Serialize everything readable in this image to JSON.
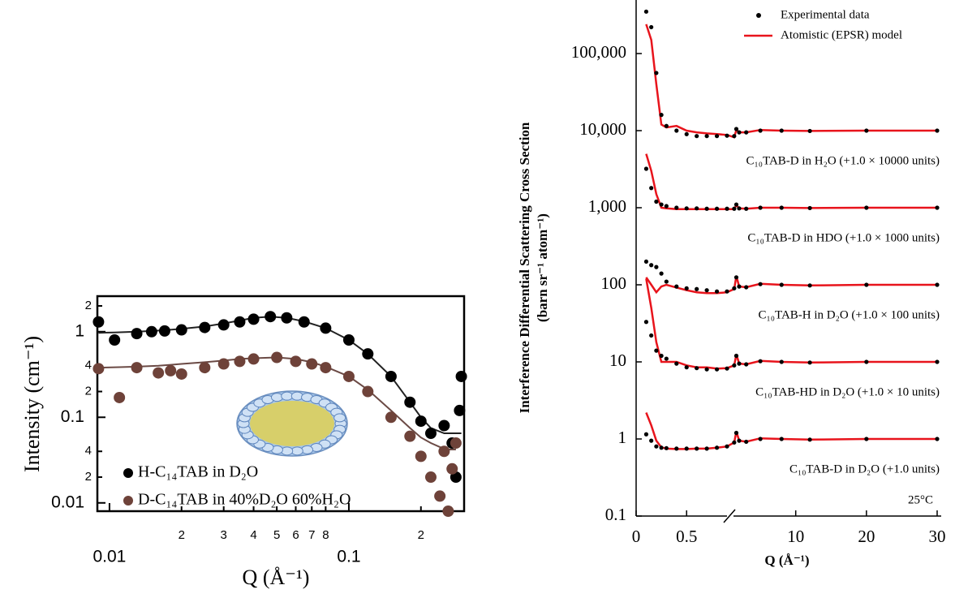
{
  "chart_data": [
    {
      "type": "scatter",
      "xlabel": "Q (Å⁻¹)",
      "ylabel": "Intensity (cm⁻¹)",
      "log_x": true,
      "log_y": true,
      "xlim": [
        0.0089,
        0.303
      ],
      "ylim": [
        0.008,
        2.6
      ],
      "xticks": [
        0.01,
        {
          "value": 0.02,
          "label": "2"
        },
        {
          "value": 0.03,
          "label": "3"
        },
        {
          "value": 0.04,
          "label": "4"
        },
        {
          "value": 0.05,
          "label": "5"
        },
        {
          "value": 0.06,
          "label": "6"
        },
        {
          "value": 0.07,
          "label": "7"
        },
        {
          "value": 0.08,
          "label": "8"
        },
        0.1,
        {
          "value": 0.2,
          "label": "2"
        }
      ],
      "yticks": [
        2,
        1,
        {
          "value": 0.4,
          "label": "4"
        },
        {
          "value": 0.2,
          "label": "2"
        },
        0.1,
        {
          "value": 0.04,
          "label": "4"
        },
        {
          "value": 0.02,
          "label": "2"
        },
        0.01
      ],
      "series": [
        {
          "name": "H-C₁₄TAB in D₂O",
          "color": "#000000",
          "fit_color": "#222222",
          "x": [
            0.009,
            0.0105,
            0.013,
            0.015,
            0.017,
            0.02,
            0.025,
            0.03,
            0.035,
            0.04,
            0.047,
            0.055,
            0.065,
            0.08,
            0.1,
            0.12,
            0.15,
            0.18,
            0.2,
            0.22,
            0.25,
            0.27,
            0.28,
            0.29,
            0.295
          ],
          "values": [
            1.3,
            0.8,
            0.95,
            1.0,
            1.02,
            1.05,
            1.12,
            1.2,
            1.3,
            1.4,
            1.5,
            1.45,
            1.3,
            1.1,
            0.8,
            0.55,
            0.3,
            0.15,
            0.09,
            0.065,
            0.08,
            0.05,
            0.02,
            0.12,
            0.3
          ],
          "fit": [
            0.97,
            0.98,
            1.0,
            1.02,
            1.04,
            1.08,
            1.15,
            1.25,
            1.35,
            1.45,
            1.5,
            1.45,
            1.32,
            1.1,
            0.8,
            0.55,
            0.3,
            0.15,
            0.1,
            0.075,
            0.065,
            0.065,
            0.065,
            0.065,
            0.065
          ]
        },
        {
          "name": "D-C₁₄TAB in 40%D₂O 60%H₂O",
          "color": "#6e4239",
          "fit_color": "#6b4a45",
          "x": [
            0.009,
            0.011,
            0.013,
            0.016,
            0.018,
            0.02,
            0.025,
            0.03,
            0.035,
            0.04,
            0.05,
            0.06,
            0.07,
            0.08,
            0.1,
            0.12,
            0.15,
            0.18,
            0.2,
            0.22,
            0.24,
            0.25,
            0.26,
            0.27,
            0.28
          ],
          "values": [
            0.37,
            0.17,
            0.38,
            0.33,
            0.35,
            0.32,
            0.38,
            0.42,
            0.45,
            0.48,
            0.5,
            0.45,
            0.42,
            0.38,
            0.3,
            0.2,
            0.1,
            0.06,
            0.035,
            0.02,
            0.012,
            0.04,
            0.008,
            0.025,
            0.05
          ],
          "fit": [
            0.38,
            0.385,
            0.39,
            0.4,
            0.41,
            0.42,
            0.44,
            0.46,
            0.48,
            0.49,
            0.5,
            0.48,
            0.44,
            0.39,
            0.3,
            0.21,
            0.12,
            0.075,
            0.058,
            0.05,
            0.045,
            0.043,
            0.042,
            0.042,
            0.042
          ]
        }
      ]
    },
    {
      "type": "line",
      "xlabel": "Q (Å⁻¹)",
      "ylabel": [
        "Interference Differential Scattering Cross Section",
        "(barn sr⁻¹ atom⁻¹)"
      ],
      "log_y": true,
      "xlim": [
        0,
        30
      ],
      "xbreak": [
        0.9,
        1.2
      ],
      "ylim": [
        0.1,
        496000
      ],
      "xticks": [
        0,
        0.5,
        10,
        20,
        30
      ],
      "yticks": [
        0.1,
        1,
        10,
        100,
        {
          "value": 1000,
          "label": "1,000"
        },
        {
          "value": 10000,
          "label": "10,000"
        },
        {
          "value": 100000,
          "label": "100,000"
        }
      ],
      "annotation": "25°C",
      "legend": [
        {
          "name": "Experimental data",
          "color": "#000000"
        },
        {
          "name": "Atomistic (EPSR) model",
          "color": "#e8141c"
        }
      ],
      "x": [
        0.1,
        0.15,
        0.2,
        0.25,
        0.3,
        0.4,
        0.5,
        0.6,
        0.7,
        0.8,
        0.9,
        1.3,
        1.6,
        2,
        3,
        5,
        8,
        12,
        20,
        30
      ],
      "datasets": [
        {
          "label": "C₁₀TAB-D in H₂O (+1.0 × 10000 units)",
          "experimental": [
            350000,
            220000,
            56000,
            16000,
            11500,
            10000,
            9000,
            8500,
            8500,
            8500,
            8600,
            8500,
            10500,
            9500,
            9500,
            10000,
            10000,
            9900,
            10000,
            10000
          ],
          "model": [
            240000,
            150000,
            40000,
            12000,
            11000,
            11500,
            10000,
            9500,
            9200,
            9000,
            8800,
            8200,
            10200,
            9500,
            9500,
            10200,
            10000,
            9900,
            10000,
            10000
          ]
        },
        {
          "label": "C₁₀TAB-D in HDO (+1.0 × 1000 units)",
          "experimental": [
            3200,
            1800,
            1200,
            1100,
            1050,
            1000,
            980,
            980,
            970,
            970,
            970,
            970,
            1100,
            980,
            970,
            1000,
            1000,
            990,
            1000,
            1000
          ],
          "model": [
            5000,
            3000,
            1500,
            1000,
            980,
            960,
            960,
            960,
            960,
            960,
            960,
            960,
            1080,
            980,
            970,
            1000,
            1000,
            990,
            1000,
            1000
          ]
        },
        {
          "label": "C₁₀TAB-H in D₂O (+1.0 × 100 units)",
          "experimental": [
            200,
            180,
            170,
            140,
            110,
            95,
            90,
            88,
            85,
            82,
            82,
            90,
            125,
            95,
            93,
            102,
            100,
            98,
            100,
            100
          ],
          "model": [
            125,
            100,
            80,
            95,
            100,
            92,
            85,
            80,
            78,
            78,
            80,
            88,
            130,
            95,
            93,
            103,
            100,
            98,
            100,
            100
          ]
        },
        {
          "label": "C₁₀TAB-HD in D₂O (+1.0 × 10 units)",
          "experimental": [
            33,
            22,
            14,
            12,
            11,
            9.5,
            8.5,
            8.3,
            8,
            8,
            8.2,
            9,
            12,
            9.5,
            9.3,
            10.2,
            10,
            9.8,
            10,
            10
          ],
          "model": [
            120,
            50,
            18,
            10,
            10,
            10,
            9,
            8.5,
            8.5,
            8.2,
            8.3,
            9,
            12.5,
            9.5,
            9.3,
            10.3,
            10,
            9.8,
            10,
            10
          ]
        },
        {
          "label": "C₁₀TAB-D in D₂O (+1.0 units)",
          "experimental": [
            1.15,
            0.95,
            0.8,
            0.77,
            0.76,
            0.75,
            0.75,
            0.75,
            0.75,
            0.77,
            0.8,
            0.9,
            1.2,
            0.95,
            0.92,
            1.0,
            1.0,
            0.98,
            1.0,
            1.0
          ],
          "model": [
            2.2,
            1.5,
            0.95,
            0.78,
            0.75,
            0.74,
            0.74,
            0.75,
            0.75,
            0.77,
            0.8,
            0.9,
            1.25,
            0.95,
            0.92,
            1.02,
            1.0,
            0.98,
            1.0,
            1.0
          ]
        }
      ]
    }
  ]
}
